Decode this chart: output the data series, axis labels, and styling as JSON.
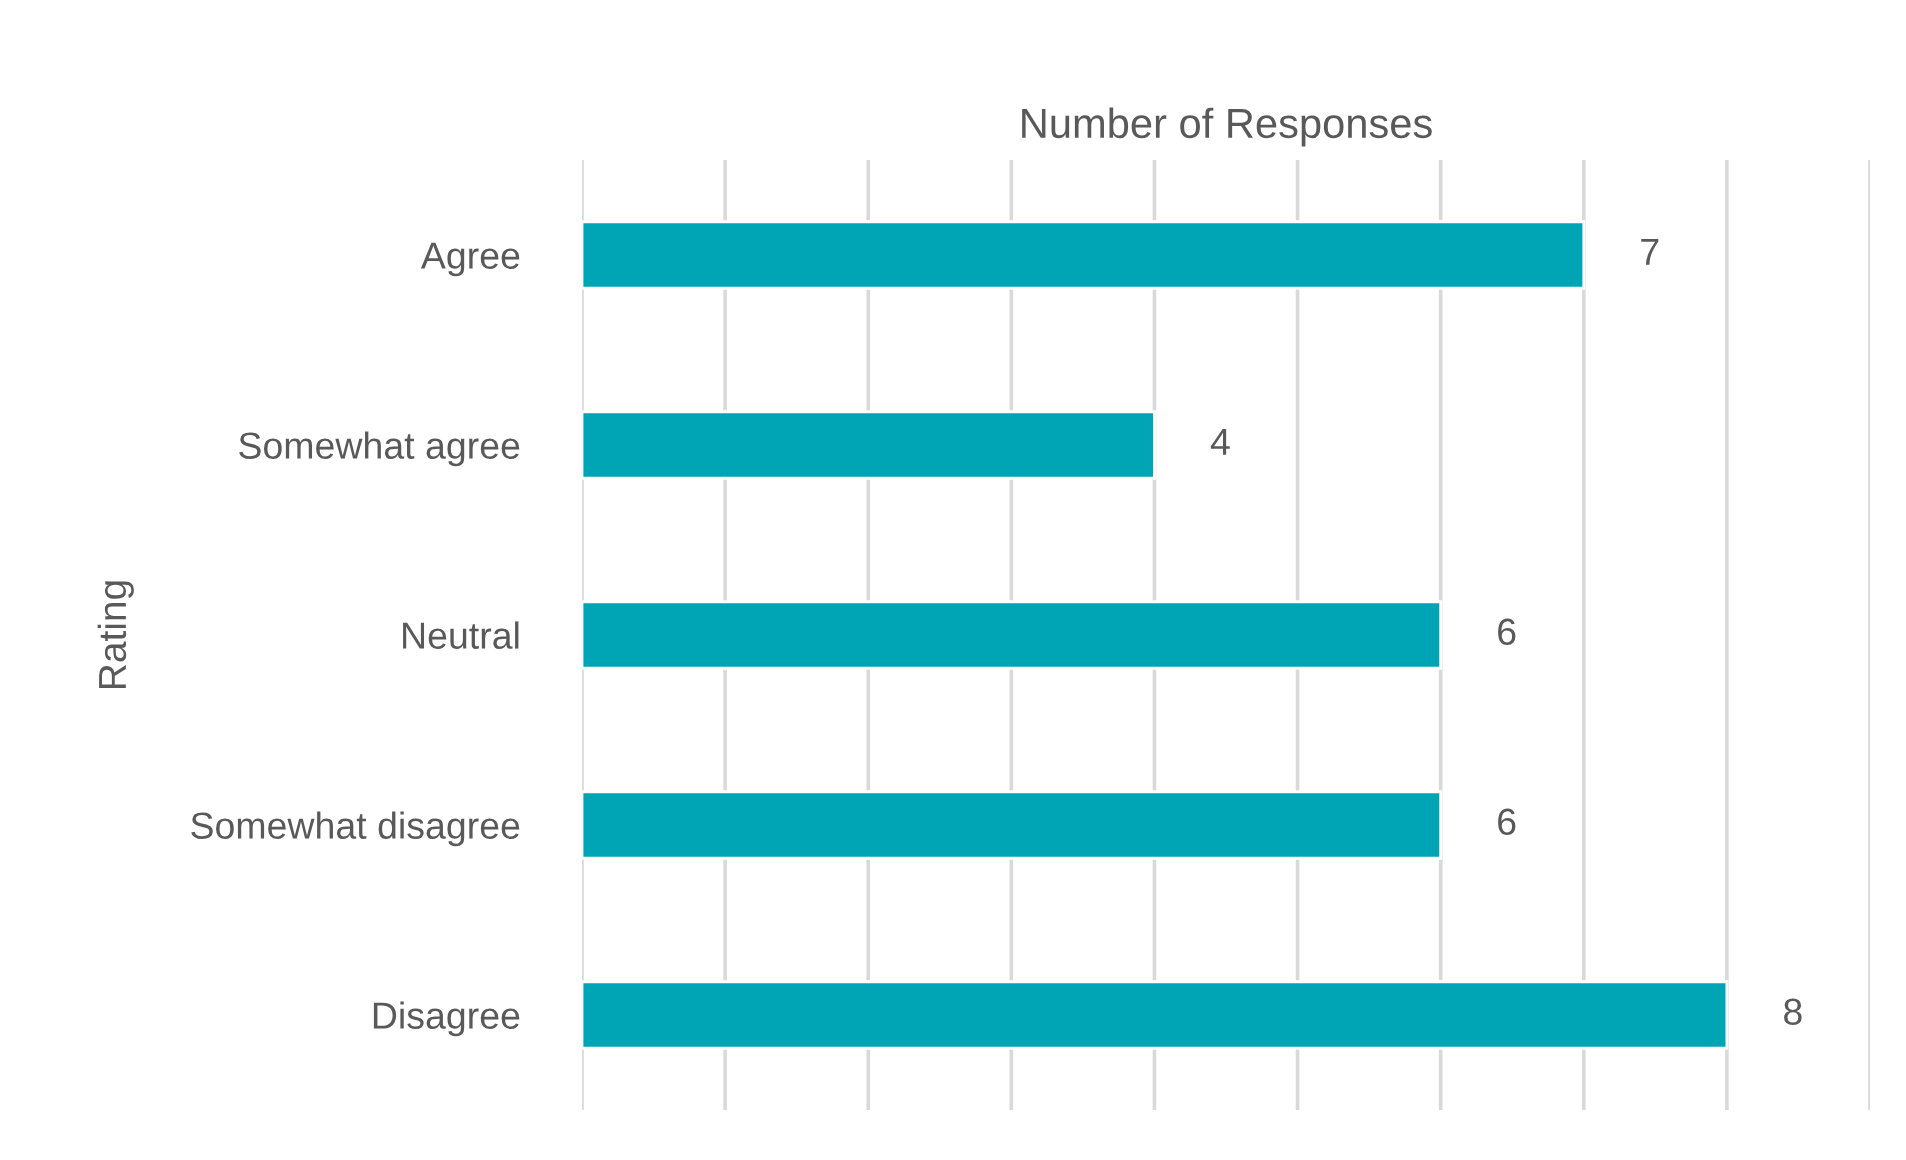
{
  "chart_data": {
    "type": "bar",
    "orientation": "horizontal",
    "title": "Number of Responses",
    "ylabel": "Rating",
    "categories": [
      "Agree",
      "Somewhat agree",
      "Neutral",
      "Somewhat disagree",
      "Disagree"
    ],
    "values": [
      7,
      4,
      6,
      6,
      8
    ],
    "color": "#00a5b5",
    "xlim": [
      0,
      9
    ],
    "xticks": [
      {
        "value": 0,
        "label": null
      },
      {
        "value": 1,
        "label": null
      },
      {
        "value": 2,
        "label": null
      },
      {
        "value": 3,
        "label": null
      },
      {
        "value": 4,
        "label": null
      },
      {
        "value": 5,
        "label": null
      },
      {
        "value": 6,
        "label": null
      },
      {
        "value": 7,
        "label": null
      },
      {
        "value": 8,
        "label": null
      },
      {
        "value": 9,
        "label": null
      }
    ],
    "tick_labels": "y",
    "grid": "x",
    "data_labels": true,
    "legend": false
  }
}
